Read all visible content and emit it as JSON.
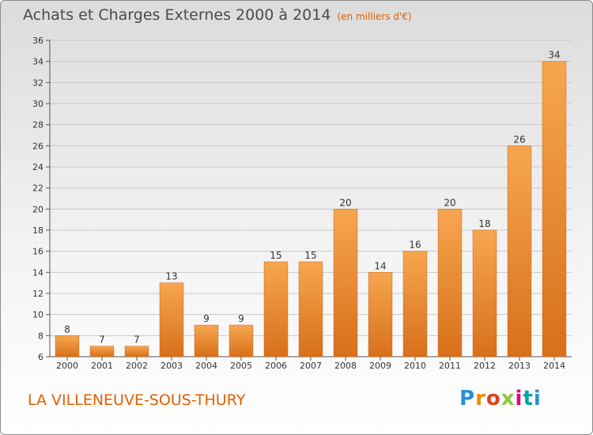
{
  "chart_data": {
    "type": "bar",
    "title": "Achats et Charges Externes 2000 à 2014",
    "subtitle": "(en milliers d'€)",
    "categories": [
      "2000",
      "2001",
      "2002",
      "2003",
      "2004",
      "2005",
      "2006",
      "2007",
      "2008",
      "2009",
      "2010",
      "2011",
      "2012",
      "2013",
      "2014"
    ],
    "values": [
      8,
      7,
      7,
      13,
      9,
      9,
      15,
      15,
      20,
      14,
      16,
      20,
      18,
      26,
      34
    ],
    "ylim": [
      6,
      36
    ],
    "yticks": [
      6,
      8,
      10,
      12,
      14,
      16,
      18,
      20,
      22,
      24,
      26,
      28,
      30,
      32,
      34,
      36
    ],
    "xlabel": "",
    "ylabel": "",
    "grid": true,
    "bar_color": "#f0902a"
  },
  "footer": {
    "commune": "LA VILLENEUVE-SOUS-THURY",
    "logo": "Proxiti"
  }
}
